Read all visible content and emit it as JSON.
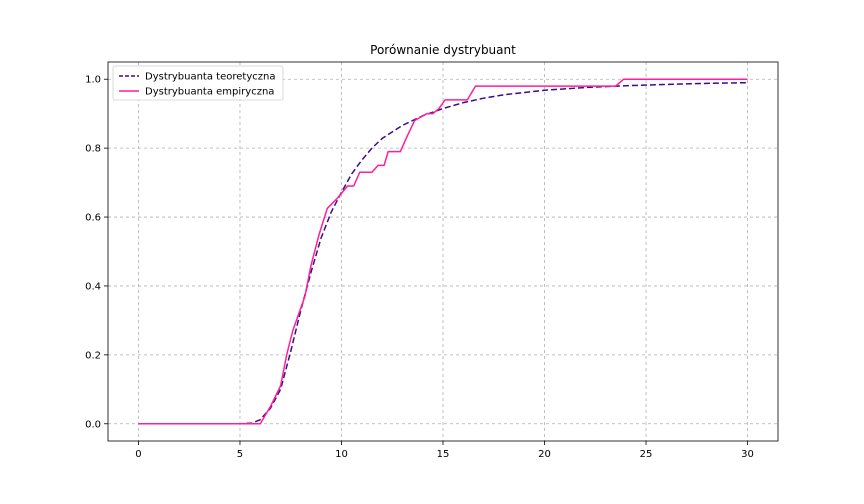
{
  "chart_data": {
    "type": "line",
    "title": "Porównanie dystrybuant",
    "xlabel": "",
    "ylabel": "",
    "xlim": [
      -1.5,
      31.5
    ],
    "ylim": [
      -0.05,
      1.05
    ],
    "xticks": [
      0,
      5,
      10,
      15,
      20,
      25,
      30
    ],
    "yticks": [
      0.0,
      0.2,
      0.4,
      0.6,
      0.8,
      1.0
    ],
    "xtick_labels": [
      "0",
      "5",
      "10",
      "15",
      "20",
      "25",
      "30"
    ],
    "ytick_labels": [
      "0.0",
      "0.2",
      "0.4",
      "0.6",
      "0.8",
      "1.0"
    ],
    "grid": true,
    "legend_position": "top-left",
    "series": [
      {
        "name": "Dystrybuanta teoretyczna",
        "color": "#3d0a8c",
        "style": "dashed",
        "x": [
          0,
          5,
          5.6,
          6,
          6.5,
          7,
          7.5,
          8,
          8.5,
          9,
          9.5,
          10,
          10.5,
          11,
          11.5,
          12,
          13,
          14,
          15,
          16,
          17,
          18,
          20,
          22,
          24,
          26,
          28,
          30
        ],
        "y": [
          0,
          0,
          0.002,
          0.012,
          0.045,
          0.1,
          0.21,
          0.33,
          0.44,
          0.54,
          0.615,
          0.672,
          0.725,
          0.765,
          0.8,
          0.828,
          0.866,
          0.894,
          0.915,
          0.932,
          0.945,
          0.955,
          0.968,
          0.976,
          0.981,
          0.985,
          0.988,
          0.99
        ]
      },
      {
        "name": "Dystrybuanta empiryczna",
        "color": "#ff1f9a",
        "style": "solid",
        "x": [
          0,
          5.5,
          6.0,
          6.5,
          7.0,
          7.3,
          7.6,
          7.9,
          8.2,
          8.5,
          8.9,
          9.3,
          9.8,
          10.3,
          10.6,
          10.9,
          11.5,
          11.8,
          12.1,
          12.3,
          12.9,
          13.2,
          13.6,
          13.9,
          14.2,
          14.5,
          14.8,
          15.1,
          16.2,
          16.6,
          23.5,
          23.9,
          30
        ],
        "y": [
          0,
          0,
          0,
          0.05,
          0.11,
          0.2,
          0.27,
          0.32,
          0.37,
          0.46,
          0.55,
          0.625,
          0.655,
          0.69,
          0.69,
          0.73,
          0.73,
          0.75,
          0.75,
          0.79,
          0.79,
          0.83,
          0.88,
          0.89,
          0.9,
          0.9,
          0.915,
          0.94,
          0.94,
          0.98,
          0.98,
          1.0,
          1.0
        ]
      }
    ]
  }
}
